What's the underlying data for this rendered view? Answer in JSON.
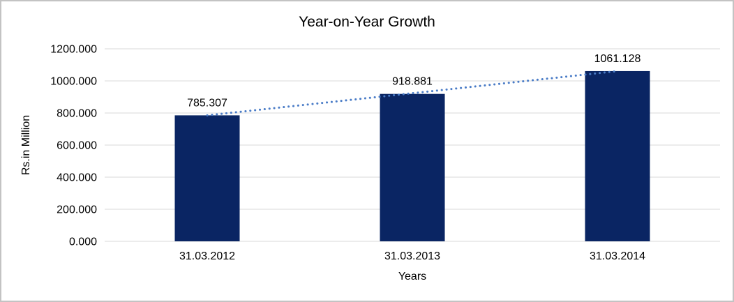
{
  "chart_data": {
    "type": "bar",
    "title": "Year-on-Year Growth",
    "xlabel": "Years",
    "ylabel": "Rs.in Million",
    "categories": [
      "31.03.2012",
      "31.03.2013",
      "31.03.2014"
    ],
    "values": [
      785.307,
      918.881,
      1061.128
    ],
    "data_labels": [
      "785.307",
      "918.881",
      "1061.128"
    ],
    "ylim": [
      0,
      1200
    ],
    "ytick_step": 200,
    "ytick_labels": [
      "0.000",
      "200.000",
      "400.000",
      "600.000",
      "800.000",
      "1000.000",
      "1200.000"
    ],
    "grid": "horizontal",
    "legend": "none",
    "trendline": {
      "type": "linear",
      "style": "dotted"
    },
    "colors": {
      "bar": "#0a2563",
      "trendline": "#4a7cc7",
      "gridline": "#d9d9d9",
      "text": "#000000",
      "frame_border": "#c3c3c3",
      "background": "#ffffff"
    }
  }
}
